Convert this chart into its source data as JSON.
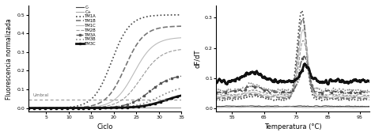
{
  "left_xlabel": "Ciclo",
  "left_ylabel": "Fluorescencia normalizada",
  "left_xlim": [
    1,
    35
  ],
  "left_ylim": [
    -0.02,
    0.55
  ],
  "left_xticks": [
    5,
    10,
    15,
    20,
    25,
    30,
    35
  ],
  "left_yticks": [
    0.0,
    0.1,
    0.2,
    0.3,
    0.4,
    0.5
  ],
  "threshold": 0.046,
  "threshold_label": "Umbral",
  "right_xlabel": "Temperatura (°C)",
  "right_ylabel": "dF/dT",
  "right_xlim": [
    50,
    98
  ],
  "right_ylim": [
    -0.01,
    0.34
  ],
  "right_xticks": [
    55,
    65,
    75,
    85,
    95
  ],
  "right_yticks": [
    0.0,
    0.1,
    0.2,
    0.3
  ],
  "legend_entries": [
    "C-",
    "C+",
    "TM1A",
    "TM1B",
    "TM1C",
    "TM2B",
    "TM3A",
    "TM3B",
    "TM3C"
  ],
  "legend_colors": [
    "#444444",
    "#aaaaaa",
    "#444444",
    "#777777",
    "#bbbbbb",
    "#999999",
    "#555555",
    "#888888",
    "#111111"
  ],
  "legend_styles": [
    "-",
    "-",
    ":",
    "--",
    "-",
    "--",
    "-.",
    ":",
    "-"
  ],
  "legend_lw": [
    0.8,
    0.8,
    1.2,
    1.2,
    0.8,
    0.8,
    1.0,
    1.2,
    2.0
  ],
  "legend_markers": [
    "",
    "",
    ".",
    "",
    "",
    "",
    "s",
    "",
    "s"
  ],
  "legend_markersize": [
    0,
    0,
    2,
    0,
    0,
    0,
    2,
    0,
    2
  ],
  "background_color": "#ffffff"
}
